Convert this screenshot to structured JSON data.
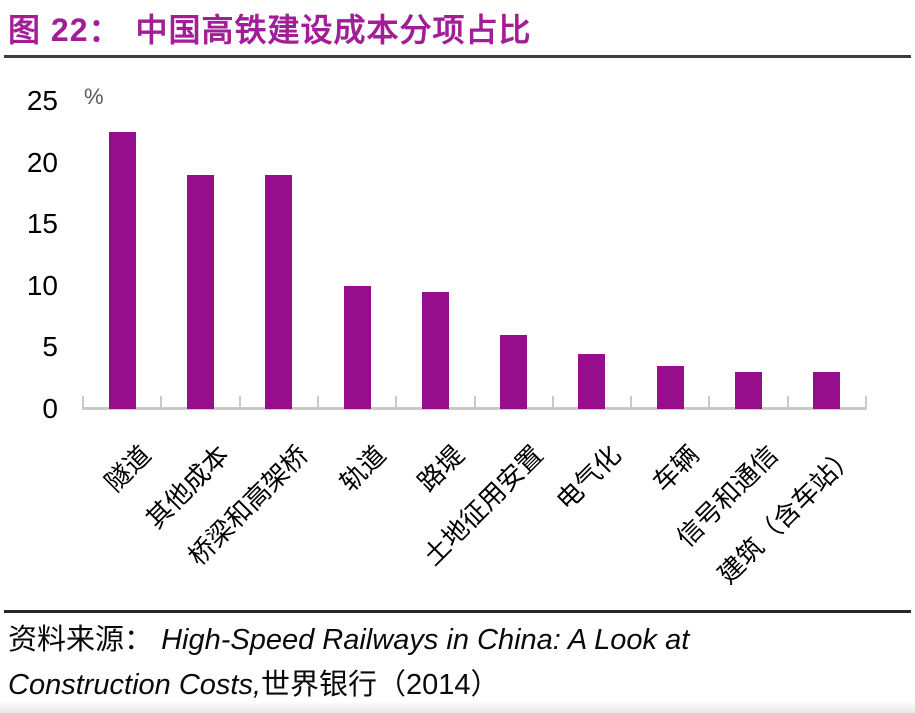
{
  "title": {
    "prefix": "图 22：",
    "text": "中国高铁建设成本分项占比"
  },
  "colors": {
    "title": "#A21E96",
    "bar": "#970E8C",
    "axis": "#C9C9C9"
  },
  "chart_data": {
    "type": "bar",
    "title": "中国高铁建设成本分项占比",
    "unit_label": "%",
    "categories": [
      "隧道",
      "其他成本",
      "桥梁和高架桥",
      "轨道",
      "路堤",
      "土地征用安置",
      "电气化",
      "车辆",
      "信号和通信",
      "建筑（含车站）"
    ],
    "values": [
      22.5,
      19,
      19,
      10,
      9.5,
      6,
      4.5,
      3.5,
      3,
      3
    ],
    "bar_color": "#970E8C",
    "xlabel": "",
    "ylabel": "%",
    "ylim": [
      0,
      25
    ],
    "y_ticks": [
      0,
      5,
      10,
      15,
      20,
      25
    ],
    "grid": false,
    "legend": "none",
    "x_tick_label_rotation_deg": 45
  },
  "footer": {
    "source_label": "资料来源：",
    "source_title_italic": "High-Speed Railways in China: A Look at Construction Costs,",
    "source_publisher": "世界银行（2014）"
  }
}
